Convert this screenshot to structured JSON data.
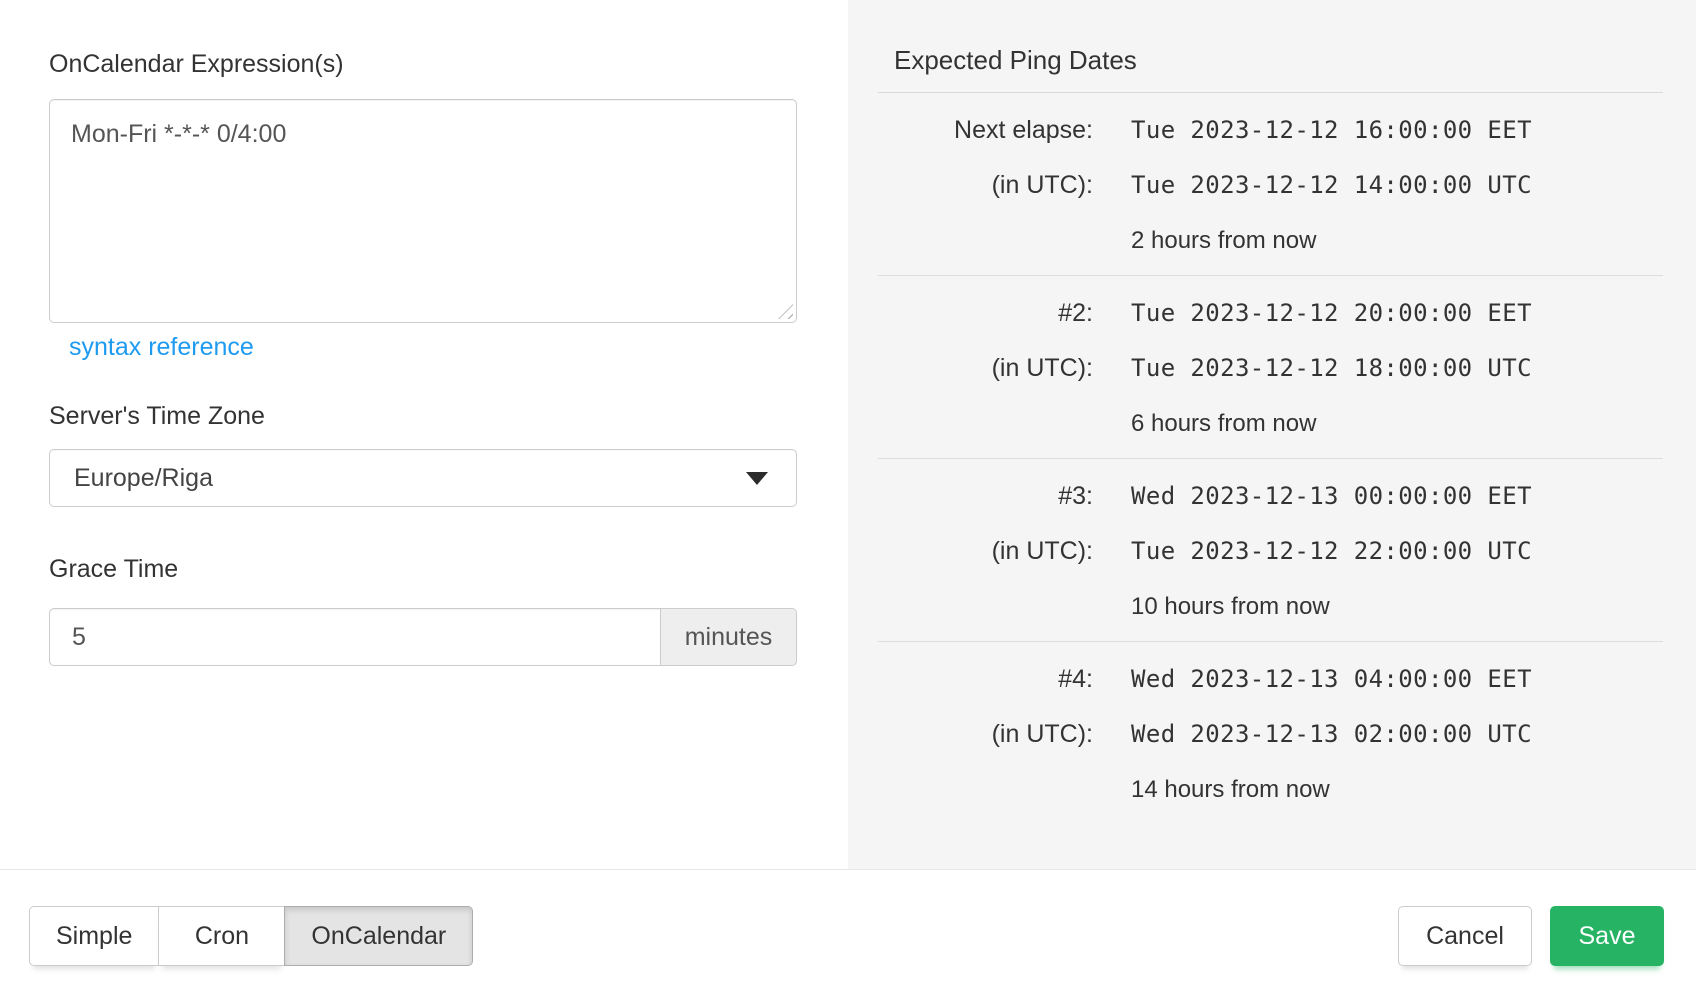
{
  "colors": {
    "panel_bg": "#f5f5f5",
    "link_blue": "#1e9bf0",
    "save_green": "#26b464",
    "text": "#333333",
    "input_text": "#555555",
    "border": "#cccccc"
  },
  "form": {
    "expression_label": "OnCalendar Expression(s)",
    "expression_value": "Mon-Fri *-*-* 0/4:00",
    "syntax_link_label": "syntax reference",
    "timezone_label": "Server's Time Zone",
    "timezone_value": "Europe/Riga",
    "grace_label": "Grace Time",
    "grace_value": "5",
    "grace_unit": "minutes"
  },
  "ping_dates": {
    "title": "Expected Ping Dates",
    "groups": [
      {
        "label": "Next elapse:",
        "local": "Tue 2023-12-12 16:00:00 EET",
        "utc_label": "(in UTC):",
        "utc": "Tue 2023-12-12 14:00:00 UTC",
        "relative": "2 hours from now"
      },
      {
        "label": "#2:",
        "local": "Tue 2023-12-12 20:00:00 EET",
        "utc_label": "(in UTC):",
        "utc": "Tue 2023-12-12 18:00:00 UTC",
        "relative": "6 hours from now"
      },
      {
        "label": "#3:",
        "local": "Wed 2023-12-13 00:00:00 EET",
        "utc_label": "(in UTC):",
        "utc": "Tue 2023-12-12 22:00:00 UTC",
        "relative": "10 hours from now"
      },
      {
        "label": "#4:",
        "local": "Wed 2023-12-13 04:00:00 EET",
        "utc_label": "(in UTC):",
        "utc": "Wed 2023-12-13 02:00:00 UTC",
        "relative": "14 hours from now"
      }
    ]
  },
  "footer": {
    "tabs": [
      {
        "label": "Simple",
        "active": false
      },
      {
        "label": "Cron",
        "active": false
      },
      {
        "label": "OnCalendar",
        "active": true
      }
    ],
    "cancel_label": "Cancel",
    "save_label": "Save"
  }
}
